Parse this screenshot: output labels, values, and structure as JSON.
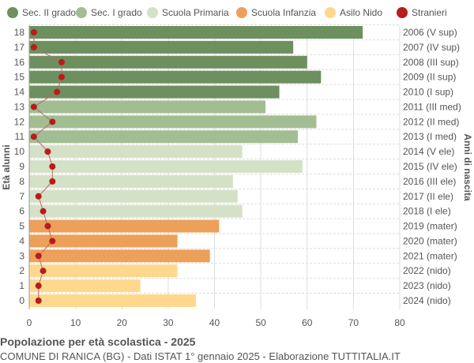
{
  "chart_data": {
    "type": "bar",
    "orientation": "horizontal",
    "title": "Popolazione per età scolastica - 2025",
    "subtitle": "COMUNE DI RANICA (BG) - Dati ISTAT 1° gennaio 2025 - Elaborazione TUTTITALIA.IT",
    "ylabel": "Età alunni",
    "ylabel_right": "Anni di nascita",
    "xlim": [
      0,
      80
    ],
    "xticks": [
      0,
      10,
      20,
      30,
      40,
      50,
      60,
      70,
      80
    ],
    "grid": true,
    "legend_position": "top",
    "legend": [
      {
        "name": "Sec. II grado",
        "color": "#6e8f5e"
      },
      {
        "name": "Sec. I grado",
        "color": "#a2bd92"
      },
      {
        "name": "Scuola Primaria",
        "color": "#d5e1c7"
      },
      {
        "name": "Scuola Infanzia",
        "color": "#eca05a"
      },
      {
        "name": "Asilo Nido",
        "color": "#fed98d"
      },
      {
        "name": "Stranieri",
        "color": "#b81c1c"
      }
    ],
    "categories": [
      18,
      17,
      16,
      15,
      14,
      13,
      12,
      11,
      10,
      9,
      8,
      7,
      6,
      5,
      4,
      3,
      2,
      1,
      0
    ],
    "birth_years": [
      "2006 (V sup)",
      "2007 (IV sup)",
      "2008 (III sup)",
      "2009 (II sup)",
      "2010 (I sup)",
      "2011 (III med)",
      "2012 (II med)",
      "2013 (I med)",
      "2014 (V ele)",
      "2015 (IV ele)",
      "2016 (III ele)",
      "2017 (II ele)",
      "2018 (I ele)",
      "2019 (mater)",
      "2020 (mater)",
      "2021 (mater)",
      "2022 (nido)",
      "2023 (nido)",
      "2024 (nido)"
    ],
    "groups": [
      0,
      0,
      0,
      0,
      0,
      1,
      1,
      1,
      2,
      2,
      2,
      2,
      2,
      3,
      3,
      3,
      4,
      4,
      4
    ],
    "values": [
      72,
      57,
      60,
      63,
      54,
      51,
      62,
      58,
      46,
      59,
      44,
      45,
      46,
      41,
      32,
      39,
      32,
      24,
      36
    ],
    "stranieri": [
      1,
      1,
      7,
      7,
      6,
      1,
      5,
      1,
      4,
      5,
      5,
      2,
      3,
      4,
      5,
      2,
      3,
      2,
      2
    ]
  }
}
